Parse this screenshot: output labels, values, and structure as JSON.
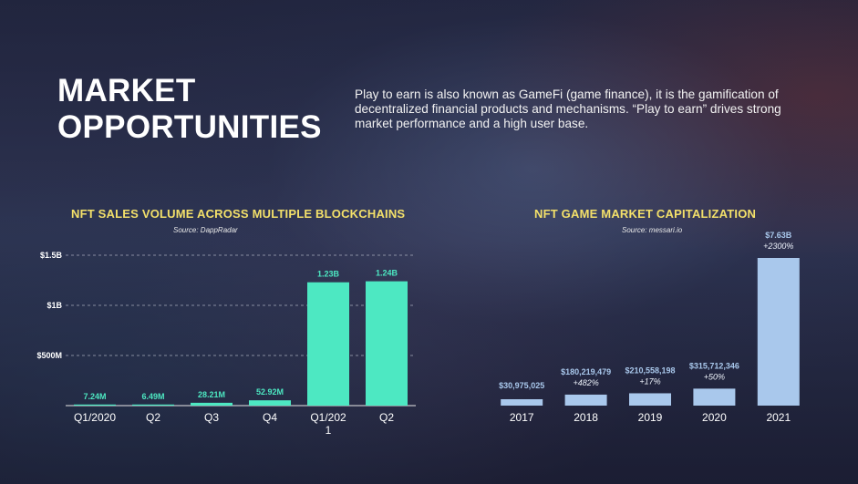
{
  "header": {
    "title_line1": "MARKET",
    "title_line2": "OPPORTUNITIES",
    "intro": "Play to earn is also known as GameFi (game finance), it is the gamification of decentralized financial products and mechanisms. “Play to earn” drives strong market performance and a high user base."
  },
  "colors": {
    "accent_title": "#f3e06a",
    "nft_bar": "#4de8c2",
    "gamefi_bar": "#a9c8ec",
    "nft_value_label": "#4de8c2",
    "gamefi_value_label": "#a9c8ec"
  },
  "chart_data": [
    {
      "id": "nft",
      "type": "bar",
      "title": "NFT SALES VOLUME ACROSS MULTIPLE BLOCKCHAINS",
      "source": "Source: DappRadar",
      "categories": [
        "Q1/2020",
        "Q2",
        "Q3",
        "Q4",
        "Q1/2021",
        "Q2"
      ],
      "category_lines": [
        [
          "Q1/2020"
        ],
        [
          "Q2"
        ],
        [
          "Q3"
        ],
        [
          "Q4"
        ],
        [
          "Q1/202",
          "1"
        ],
        [
          "Q2"
        ]
      ],
      "values": [
        7.24,
        6.49,
        28.21,
        52.92,
        1230,
        1240
      ],
      "value_labels": [
        "7.24M",
        "6.49M",
        "28.21M",
        "52.92M",
        "1.23B",
        "1.24B"
      ],
      "unit": "M USD",
      "yticks": [
        500,
        1000,
        1500
      ],
      "ytick_labels": [
        "$500M",
        "$1B",
        "$1.5B"
      ],
      "ylim": [
        0,
        1500
      ],
      "grid": "dashed horizontal",
      "legend": "none"
    },
    {
      "id": "gamefi",
      "type": "bar",
      "title": "NFT GAME MARKET CAPITALIZATION",
      "source": "Source: messari.io",
      "categories": [
        "2017",
        "2018",
        "2019",
        "2020",
        "2021"
      ],
      "values": [
        30975025,
        180219479,
        210558198,
        315712346,
        7630000000
      ],
      "value_labels": [
        "$30,975,025",
        "$180,219,479",
        "$210,558,198",
        "$315,712,346",
        "$7.63B"
      ],
      "growth_labels": [
        "",
        "+482%",
        "+17%",
        "+50%",
        "+2300%"
      ],
      "scale": "non-linear (bars not to scale)",
      "grid": "none",
      "legend": "none"
    }
  ]
}
